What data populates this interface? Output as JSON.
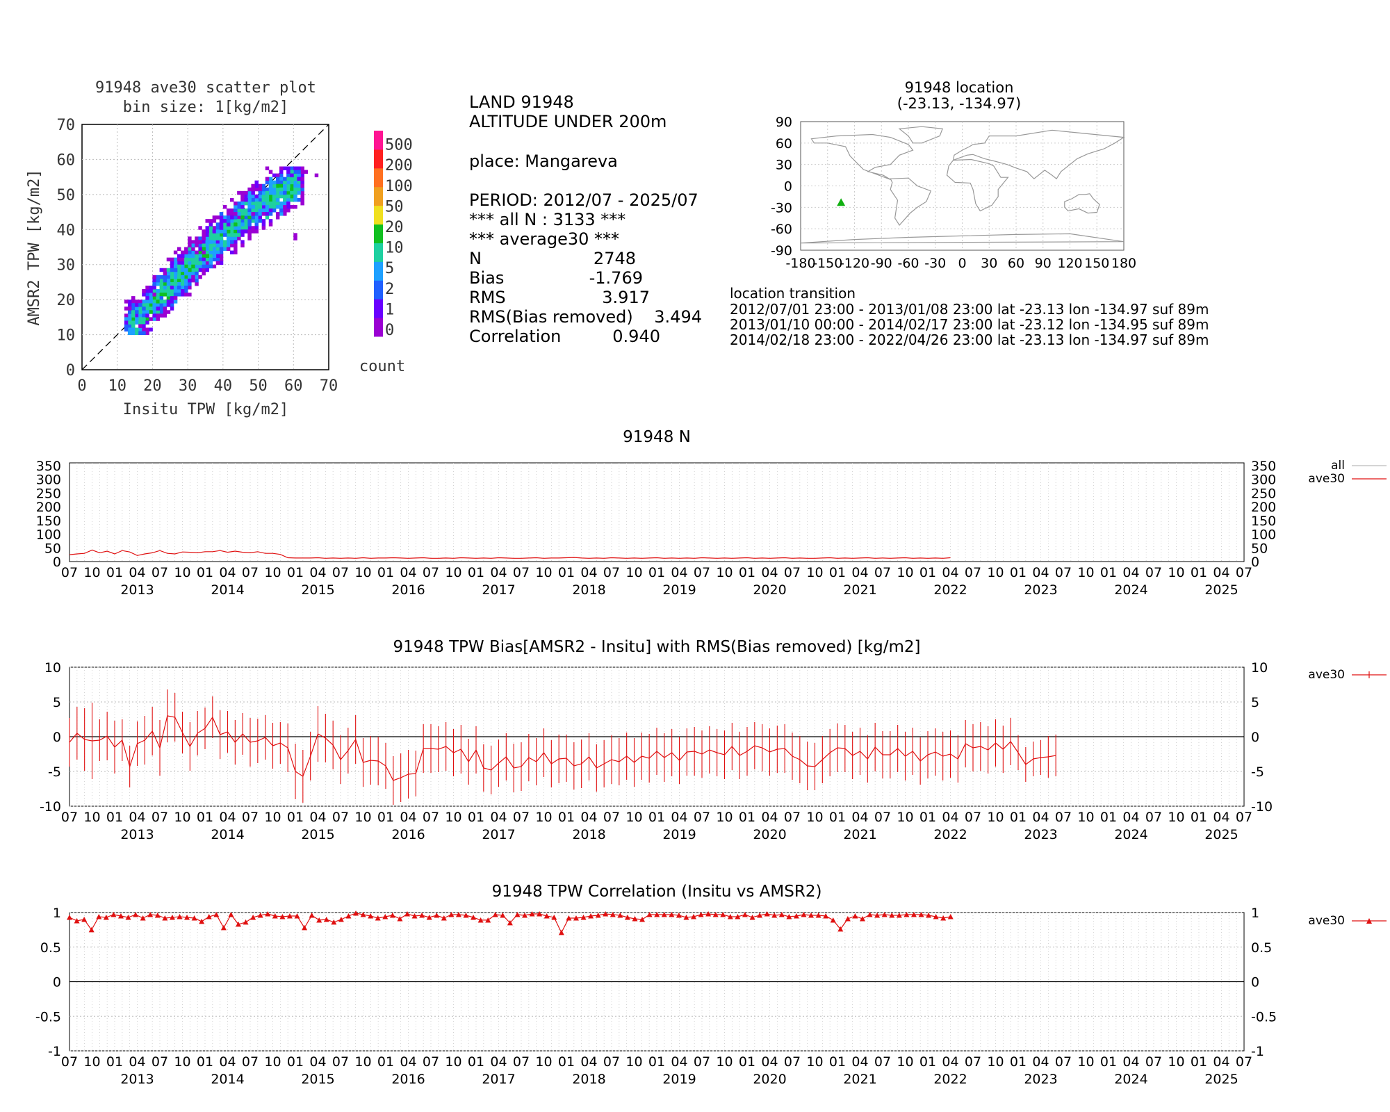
{
  "scatter": {
    "title_line1": "91948 ave30 scatter plot",
    "title_line2": "bin size: 1[kg/m2]",
    "xlabel": "Insitu TPW [kg/m2]",
    "ylabel": "AMSR2 TPW [kg/m2]",
    "ticks": [
      "0",
      "10",
      "20",
      "30",
      "40",
      "50",
      "60",
      "70"
    ],
    "colorbar_labels": [
      "0",
      "1",
      "2",
      "5",
      "10",
      "20",
      "50",
      "100",
      "200",
      "500"
    ],
    "colorbar_colors": [
      "#9b00d3",
      "#6a00ff",
      "#2060ff",
      "#1ea0ff",
      "#1ed0a0",
      "#10c020",
      "#f0e020",
      "#f0a020",
      "#ff7020",
      "#ff2020",
      "#ff1493"
    ],
    "colorbar_unit": "count"
  },
  "stats": {
    "line1": "LAND 91948",
    "line2": "ALTITUDE UNDER 200m",
    "place": "place: Mangareva",
    "period": "PERIOD: 2012/07 - 2025/07",
    "all_n": "*** all N :     3133 ***",
    "average": "*** average30 ***",
    "rows": [
      {
        "label": "N",
        "value": "2748"
      },
      {
        "label": "Bias",
        "value": "-1.769"
      },
      {
        "label": "RMS",
        "value": "3.917"
      },
      {
        "label": "RMS(Bias removed)",
        "value": "3.494"
      },
      {
        "label": "Correlation",
        "value": "0.940"
      }
    ]
  },
  "location": {
    "title": "91948 location",
    "coords": "(-23.13, -134.97)",
    "yticks": [
      "90",
      "60",
      "30",
      "0",
      "-30",
      "-60",
      "-90"
    ],
    "xticks": [
      "-180",
      "-150",
      "-120",
      "-90",
      "-60",
      "-30",
      "0",
      "30",
      "60",
      "90",
      "120",
      "150",
      "180"
    ],
    "station_lon": -134.97,
    "station_lat": -23.13,
    "marker_color": "#10b010",
    "transition_title": "location transition",
    "transitions": [
      "2012/07/01 23:00 - 2013/01/08 23:00 lat -23.13 lon -134.97 suf 89m",
      "2013/01/10 00:00 - 2014/02/17 23:00 lat -23.12 lon -134.95 suf 89m",
      "2014/02/18 23:00 - 2022/04/26 23:00 lat -23.13 lon -134.97 suf 89m"
    ]
  },
  "timeaxis": {
    "month_labels": [
      "07",
      "10",
      "01",
      "04",
      "07",
      "10",
      "01",
      "04",
      "07",
      "10",
      "01",
      "04",
      "07",
      "10",
      "01",
      "04",
      "07",
      "10",
      "01",
      "04",
      "07",
      "10",
      "01",
      "04",
      "07",
      "10",
      "01",
      "04",
      "07",
      "10",
      "01",
      "04",
      "07",
      "10",
      "01",
      "04",
      "07",
      "10",
      "01",
      "04",
      "07",
      "10",
      "01",
      "04",
      "07",
      "10",
      "01",
      "04",
      "07",
      "10",
      "01",
      "04",
      "07"
    ],
    "years": [
      "2013",
      "2014",
      "2015",
      "2016",
      "2017",
      "2018",
      "2019",
      "2020",
      "2021",
      "2022",
      "2023",
      "2024",
      "2025"
    ]
  },
  "panel_n": {
    "title": "91948 N",
    "yticks": [
      "350",
      "300",
      "250",
      "200",
      "150",
      "100",
      "50",
      "0"
    ],
    "legend_all": "all",
    "legend_ave": "ave30"
  },
  "panel_bias": {
    "title": "91948 TPW Bias[AMSR2 - Insitu] with RMS(Bias removed) [kg/m2]",
    "yticks": [
      "10",
      "5",
      "0",
      "-5",
      "-10"
    ],
    "legend_ave": "ave30"
  },
  "panel_corr": {
    "title": "91948 TPW Correlation (Insitu vs AMSR2)",
    "yticks": [
      "1",
      "0.5",
      "0",
      "-0.5",
      "-1"
    ],
    "legend_ave": "ave30"
  },
  "chart_data": [
    {
      "type": "heatmap",
      "title": "91948 ave30 scatter plot",
      "xlabel": "Insitu TPW [kg/m2]",
      "ylabel": "AMSR2 TPW [kg/m2]",
      "xlim": [
        0,
        70
      ],
      "ylim": [
        0,
        70
      ],
      "grid": true,
      "reference_line": "y = x (dashed)",
      "density_center_pairs": [
        [
          15,
          13
        ],
        [
          20,
          19
        ],
        [
          25,
          24
        ],
        [
          30,
          29
        ],
        [
          35,
          34
        ],
        [
          40,
          38
        ],
        [
          45,
          43
        ],
        [
          50,
          47
        ],
        [
          55,
          50
        ],
        [
          60,
          53
        ]
      ]
    },
    {
      "type": "line",
      "title": "91948 N",
      "x_start": "2012-07",
      "x_step_months": 1,
      "ylim": [
        0,
        350
      ],
      "series": [
        {
          "name": "all",
          "values": []
        },
        {
          "name": "ave30",
          "values": [
            25,
            28,
            30,
            42,
            32,
            38,
            28,
            40,
            35,
            22,
            28,
            32,
            40,
            30,
            28,
            35,
            34,
            32,
            36,
            36,
            40,
            34,
            38,
            34,
            32,
            36,
            30,
            30,
            26,
            14,
            13,
            13,
            13,
            14,
            12,
            13,
            12,
            13,
            12,
            14,
            12,
            13,
            13,
            14,
            13,
            12,
            13,
            14,
            12,
            12,
            13,
            12,
            14,
            13,
            12,
            13,
            12,
            14,
            13,
            12,
            12,
            13,
            14,
            12,
            13,
            13,
            14,
            15,
            13,
            12,
            13,
            12,
            14,
            13,
            12,
            13,
            12,
            13,
            14,
            12,
            13,
            12,
            13,
            12,
            14,
            13,
            12,
            13,
            12,
            13,
            14,
            12,
            13,
            12,
            13,
            14,
            12,
            13,
            12,
            12,
            13,
            14,
            12,
            13,
            12,
            13,
            14,
            12,
            13,
            12,
            13,
            14,
            12,
            13,
            12,
            13,
            12,
            14
          ]
        }
      ]
    },
    {
      "type": "line",
      "title": "91948 TPW Bias[AMSR2 - Insitu] with RMS(Bias removed) [kg/m2]",
      "x_start": "2012-07",
      "x_step_months": 1,
      "ylim": [
        -10,
        10
      ],
      "series": [
        {
          "name": "ave30",
          "values": [
            -0.8,
            0.5,
            -0.4,
            -0.6,
            -0.5,
            0.1,
            -1.5,
            -0.5,
            -4.3,
            -1.0,
            -0.5,
            0.8,
            -1.6,
            3.0,
            2.8,
            0.6,
            -1.4,
            0.5,
            1.2,
            2.8,
            0.3,
            0.7,
            -0.8,
            0.4,
            -0.8,
            -0.6,
            -0.1,
            -1.3,
            -0.9,
            -1.6,
            -5.0,
            -5.7,
            -2.8,
            0.4,
            -0.2,
            -1.2,
            -3.3,
            -2.0,
            -0.4,
            -3.7,
            -3.4,
            -3.5,
            -4.2,
            -6.3,
            -5.9,
            -5.4,
            -5.3,
            -1.7,
            -1.7,
            -1.8,
            -1.4,
            -2.3,
            -1.8,
            -3.6,
            -1.9,
            -4.5,
            -4.8,
            -3.8,
            -2.9,
            -4.5,
            -4.3,
            -3.0,
            -3.6,
            -2.3,
            -3.9,
            -3.2,
            -3.1,
            -4.2,
            -3.9,
            -2.9,
            -4.5,
            -3.9,
            -3.3,
            -3.6,
            -2.8,
            -3.7,
            -2.8,
            -3.1,
            -2.1,
            -3.0,
            -2.3,
            -3.4,
            -2.2,
            -2.1,
            -2.5,
            -1.9,
            -2.3,
            -2.6,
            -1.4,
            -2.7,
            -2.1,
            -1.3,
            -1.6,
            -2.2,
            -1.8,
            -1.7,
            -2.8,
            -3.3,
            -4.2,
            -4.3,
            -3.3,
            -2.3,
            -1.6,
            -1.7,
            -2.7,
            -2.1,
            -3.2,
            -1.5,
            -2.6,
            -2.6,
            -1.7,
            -2.8,
            -2.1,
            -3.5,
            -2.6,
            -2.2,
            -2.8,
            -2.5,
            -3.2,
            -1.0,
            -1.6,
            -1.4,
            -1.9,
            -0.9,
            -1.8,
            -0.7,
            -2.3,
            -4.0,
            -3.2,
            -3.0,
            -2.9,
            -2.7
          ]
        },
        {
          "name": "ave30 RMS(Bias removed) error",
          "values": [
            3.5,
            3.8,
            4.5,
            5.5,
            3.0,
            3.5,
            3.8,
            3.0,
            3.0,
            3.2,
            3.5,
            3.5,
            4.0,
            3.8,
            3.5,
            3.0,
            3.5,
            3.2,
            3.0,
            3.0,
            3.5,
            3.0,
            3.2,
            3.0,
            3.5,
            3.2,
            3.2,
            3.3,
            3.0,
            3.5,
            4.0,
            3.8,
            3.5,
            4.0,
            3.5,
            3.5,
            3.5,
            3.3,
            3.5,
            3.5,
            3.5,
            3.5,
            3.3,
            3.5,
            3.5,
            3.5,
            3.3,
            3.5,
            3.5,
            3.3,
            3.5,
            3.4,
            3.5,
            3.3,
            3.4,
            3.4,
            3.5,
            3.4,
            3.4,
            3.5,
            3.5,
            3.4,
            3.4,
            3.5,
            3.4,
            3.5,
            3.4,
            3.4,
            3.5,
            3.4,
            3.4,
            3.4,
            3.5,
            3.4,
            3.4,
            3.5,
            3.4,
            3.5,
            3.4,
            3.5,
            3.4,
            3.4,
            3.4,
            3.5,
            3.4,
            3.4,
            3.4,
            3.5,
            3.4,
            3.4,
            3.5,
            3.4,
            3.4,
            3.4,
            3.4,
            3.5,
            3.4,
            3.4,
            3.5,
            3.4,
            3.4,
            3.4,
            3.5,
            3.4,
            3.4,
            3.4,
            3.4,
            3.5,
            3.4,
            3.4,
            3.4,
            3.5,
            3.4,
            3.4,
            3.4,
            3.4,
            3.5,
            3.4,
            3.4,
            3.4,
            3.4,
            3.5,
            3.4,
            3.4,
            3.4,
            3.4,
            2.5,
            2.5,
            2.5,
            2.5
          ]
        }
      ]
    },
    {
      "type": "line",
      "title": "91948 TPW Correlation (Insitu vs AMSR2)",
      "x_start": "2012-07",
      "x_step_months": 1,
      "ylim": [
        -1,
        1
      ],
      "series": [
        {
          "name": "ave30",
          "values": [
            0.93,
            0.88,
            0.9,
            0.75,
            0.94,
            0.93,
            0.97,
            0.95,
            0.93,
            0.97,
            0.92,
            0.97,
            0.96,
            0.92,
            0.93,
            0.94,
            0.93,
            0.92,
            0.87,
            0.94,
            0.97,
            0.78,
            0.97,
            0.83,
            0.86,
            0.93,
            0.96,
            0.98,
            0.95,
            0.94,
            0.95,
            0.95,
            0.78,
            0.96,
            0.89,
            0.9,
            0.86,
            0.9,
            0.95,
            0.99,
            0.97,
            0.95,
            0.92,
            0.94,
            0.96,
            0.91,
            0.98,
            0.95,
            0.96,
            0.93,
            0.96,
            0.92,
            0.97,
            0.97,
            0.96,
            0.93,
            0.89,
            0.89,
            0.97,
            0.96,
            0.85,
            0.97,
            0.96,
            0.98,
            0.98,
            0.95,
            0.93,
            0.71,
            0.92,
            0.92,
            0.93,
            0.95,
            0.96,
            0.98,
            0.97,
            0.96,
            0.93,
            0.91,
            0.9,
            0.97,
            0.97,
            0.97,
            0.97,
            0.96,
            0.93,
            0.94,
            0.97,
            0.98,
            0.97,
            0.97,
            0.94,
            0.94,
            0.97,
            0.93,
            0.96,
            0.98,
            0.96,
            0.97,
            0.94,
            0.95,
            0.97,
            0.96,
            0.96,
            0.95,
            0.89,
            0.76,
            0.91,
            0.95,
            0.91,
            0.97,
            0.96,
            0.97,
            0.96,
            0.96,
            0.97,
            0.97,
            0.97,
            0.96,
            0.94,
            0.92,
            0.94
          ]
        }
      ]
    }
  ]
}
